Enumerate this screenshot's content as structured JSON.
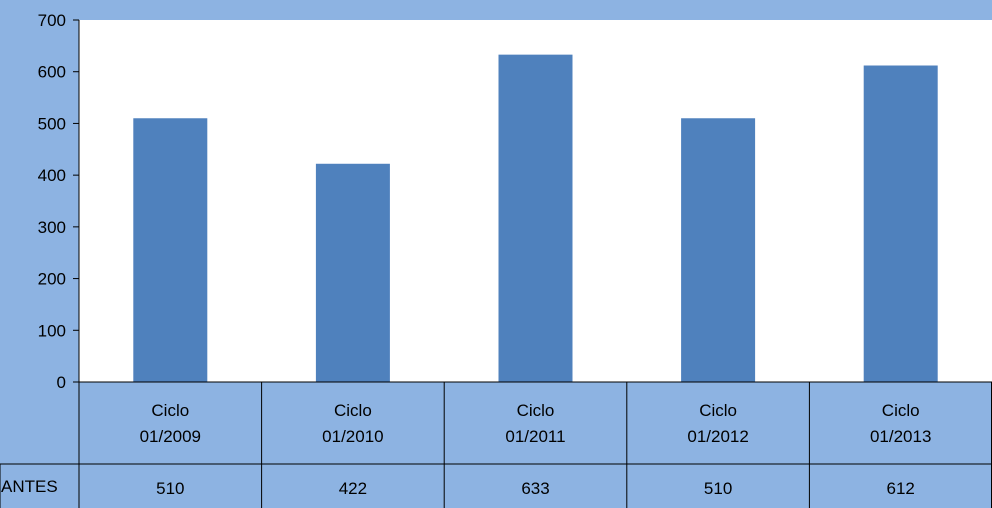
{
  "colors": {
    "background": "#8db3e2",
    "plot_area": "#ffffff",
    "bar": "#4f81bd",
    "grid": "#000000"
  },
  "chart_data": {
    "type": "bar",
    "categories": [
      [
        "Ciclo",
        "01/2009"
      ],
      [
        "Ciclo",
        "01/2010"
      ],
      [
        "Ciclo",
        "01/2011"
      ],
      [
        "Ciclo",
        "01/2012"
      ],
      [
        "Ciclo",
        "01/2013"
      ]
    ],
    "series": [
      {
        "name": "ANTES",
        "values": [
          510,
          422,
          633,
          510,
          612
        ]
      }
    ],
    "ylim": [
      0,
      700
    ],
    "yticks": [
      "0",
      "100",
      "200",
      "300",
      "400",
      "500",
      "600",
      "700"
    ],
    "grid": false,
    "legend": "data-table"
  }
}
